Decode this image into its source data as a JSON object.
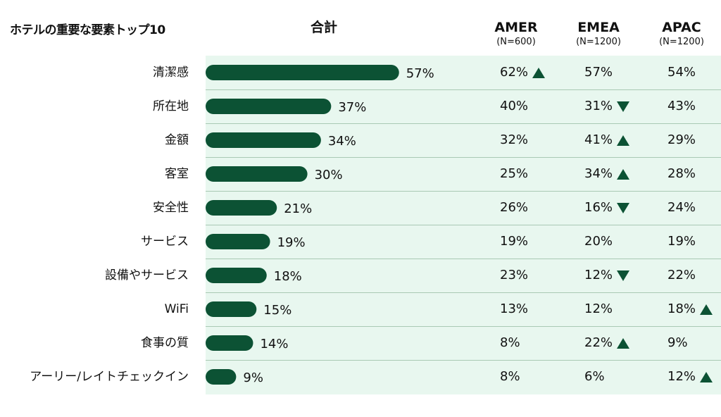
{
  "title": "ホテルの重要な要素トップ10",
  "columns": {
    "total": {
      "label": "合計"
    },
    "amer": {
      "label": "AMER",
      "sub": "(N=600)"
    },
    "emea": {
      "label": "EMEA",
      "sub": "(N=1200)"
    },
    "apac": {
      "label": "APAC",
      "sub": "(N=1200)"
    }
  },
  "colors": {
    "bar": "#0c5234",
    "panel": "#e8f7ef",
    "divider": "#a9c9b4"
  },
  "chart_data": {
    "type": "bar",
    "orientation": "horizontal",
    "categories": [
      "清潔感",
      "所在地",
      "金額",
      "客室",
      "安全性",
      "サービス",
      "設備やサービス",
      "WiFi",
      "食事の質",
      "アーリー/レイトチェックイン"
    ],
    "series": [
      {
        "name": "合計",
        "values": [
          57,
          37,
          34,
          30,
          21,
          19,
          18,
          15,
          14,
          9
        ]
      }
    ],
    "value_labels": [
      "57%",
      "37%",
      "34%",
      "30%",
      "21%",
      "19%",
      "18%",
      "15%",
      "14%",
      "9%"
    ]
  },
  "table": [
    {
      "amer": "62%",
      "amer_mark": "up",
      "emea": "57%",
      "emea_mark": "",
      "apac": "54%",
      "apac_mark": ""
    },
    {
      "amer": "40%",
      "amer_mark": "",
      "emea": "31%",
      "emea_mark": "down",
      "apac": "43%",
      "apac_mark": ""
    },
    {
      "amer": "32%",
      "amer_mark": "",
      "emea": "41%",
      "emea_mark": "up",
      "apac": "29%",
      "apac_mark": ""
    },
    {
      "amer": "25%",
      "amer_mark": "",
      "emea": "34%",
      "emea_mark": "up",
      "apac": "28%",
      "apac_mark": ""
    },
    {
      "amer": "26%",
      "amer_mark": "",
      "emea": "16%",
      "emea_mark": "down",
      "apac": "24%",
      "apac_mark": ""
    },
    {
      "amer": "19%",
      "amer_mark": "",
      "emea": "20%",
      "emea_mark": "",
      "apac": "19%",
      "apac_mark": ""
    },
    {
      "amer": "23%",
      "amer_mark": "",
      "emea": "12%",
      "emea_mark": "down",
      "apac": "22%",
      "apac_mark": ""
    },
    {
      "amer": "13%",
      "amer_mark": "",
      "emea": "12%",
      "emea_mark": "",
      "apac": "18%",
      "apac_mark": "up"
    },
    {
      "amer": "8%",
      "amer_mark": "",
      "emea": "22%",
      "emea_mark": "up",
      "apac": "9%",
      "apac_mark": ""
    },
    {
      "amer": "8%",
      "amer_mark": "",
      "emea": "6%",
      "emea_mark": "",
      "apac": "12%",
      "apac_mark": "up"
    }
  ]
}
